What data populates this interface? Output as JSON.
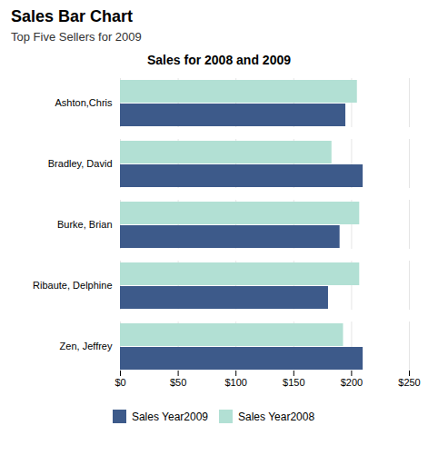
{
  "title": "Sales Bar Chart",
  "subtitle": "Top Five Sellers for 2009",
  "chart_data": {
    "type": "bar",
    "orientation": "horizontal",
    "title": "Sales for 2008 and 2009",
    "categories": [
      "Ashton,Chris",
      "Bradley, David",
      "Burke, Brian",
      "Ribaute, Delphine",
      "Zen, Jeffrey"
    ],
    "series": [
      {
        "name": "Sales Year2009",
        "color": "#3d5a8a",
        "values": [
          195,
          210,
          190,
          180,
          210
        ]
      },
      {
        "name": "Sales Year2008",
        "color": "#b2e0d4",
        "values": [
          205,
          183,
          207,
          207,
          193
        ]
      }
    ],
    "xlim": [
      0,
      250
    ],
    "xticks": [
      {
        "value": 0,
        "label": "$0"
      },
      {
        "value": 50,
        "label": "$50"
      },
      {
        "value": 100,
        "label": "$100"
      },
      {
        "value": 150,
        "label": "$150"
      },
      {
        "value": 200,
        "label": "$200"
      },
      {
        "value": 250,
        "label": "$250"
      }
    ],
    "grid": true,
    "legend": "bottom"
  }
}
